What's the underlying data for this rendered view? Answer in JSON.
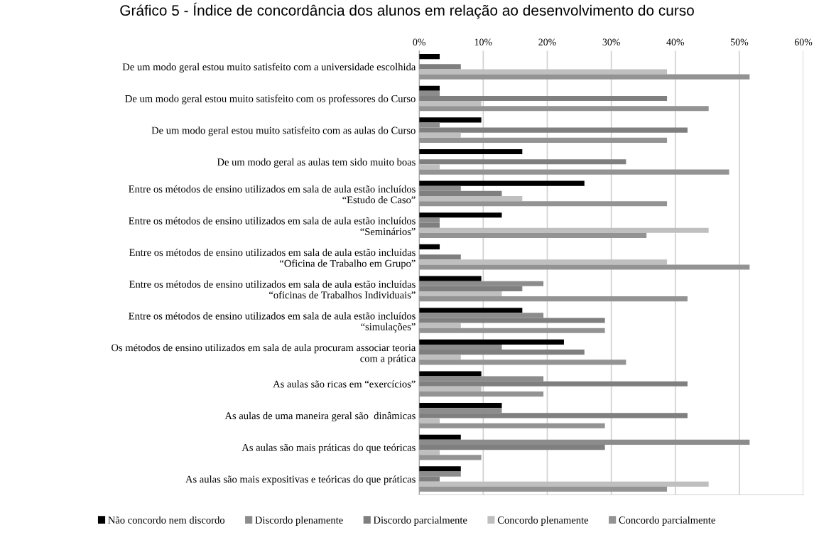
{
  "chart_data": {
    "type": "bar",
    "orientation": "horizontal",
    "title": "Gráfico 5 - Índice de concordância dos alunos em relação ao desenvolvimento do curso",
    "categories": [
      "De um modo geral estou muito satisfeito com a universidade escolhida",
      "De um modo geral estou muito satisfeito com os professores do Curso",
      "De um modo geral estou muito satisfeito com as aulas do Curso",
      "De um modo geral as aulas tem sido muito boas",
      "Entre os métodos de ensino utilizados em sala de aula estão incluídos\n“Estudo de Caso”",
      "Entre os métodos de ensino utilizados em sala de aula estão incluídos\n“Seminários”",
      "Entre os métodos de ensino utilizados em sala de aula estão incluídas\n“Oficina de Trabalho em Grupo”",
      "Entre os métodos de ensino utilizados em sala de aula estão incluídas\n“oficinas de Trabalhos Individuais”",
      "Entre os métodos de ensino utilizados em sala de aula estão incluídos\n“simulações”",
      "Os métodos de ensino utilizados em sala de aula procuram associar teoria\ncom a prática",
      "As aulas são ricas em “exercícios”",
      "As aulas de uma maneira geral são  dinâmicas",
      "As aulas são mais práticas do que teóricas",
      "As aulas são mais expositivas e teóricas do que práticas"
    ],
    "series": [
      {
        "name": "Não concordo nem discordo",
        "color": "#000000",
        "values": [
          3.2,
          3.2,
          9.7,
          16.1,
          25.8,
          12.9,
          3.2,
          9.7,
          16.1,
          22.6,
          9.7,
          12.9,
          6.5,
          6.5
        ]
      },
      {
        "name": "Discordo plenamente",
        "color": "#8c8c8c",
        "values": [
          0,
          3.2,
          3.2,
          0,
          6.5,
          3.2,
          0,
          19.4,
          19.4,
          12.9,
          19.4,
          12.9,
          51.6,
          6.5
        ]
      },
      {
        "name": "Discordo parcialmente",
        "color": "#7f7f7f",
        "values": [
          6.5,
          38.7,
          41.9,
          32.3,
          12.9,
          3.2,
          6.5,
          16.1,
          29.0,
          25.8,
          41.9,
          41.9,
          29.0,
          3.2
        ]
      },
      {
        "name": "Concordo plenamente",
        "color": "#bfbfbf",
        "values": [
          38.7,
          9.7,
          6.5,
          3.2,
          16.1,
          45.2,
          38.7,
          12.9,
          6.5,
          6.5,
          9.7,
          3.2,
          3.2,
          45.2
        ]
      },
      {
        "name": "Concordo parcialmente",
        "color": "#939393",
        "values": [
          51.6,
          45.2,
          38.7,
          48.4,
          38.7,
          35.5,
          51.6,
          41.9,
          29.0,
          32.3,
          19.4,
          29.0,
          9.7,
          38.7
        ]
      }
    ],
    "xlim": [
      0,
      60
    ],
    "xticks": [
      {
        "value": 0,
        "label": "0%"
      },
      {
        "value": 10,
        "label": "10%"
      },
      {
        "value": 20,
        "label": "20%"
      },
      {
        "value": 30,
        "label": "30%"
      },
      {
        "value": 40,
        "label": "40%"
      },
      {
        "value": 50,
        "label": "50%"
      },
      {
        "value": 60,
        "label": "60%"
      }
    ],
    "grid": "x",
    "legend": "bottom"
  }
}
